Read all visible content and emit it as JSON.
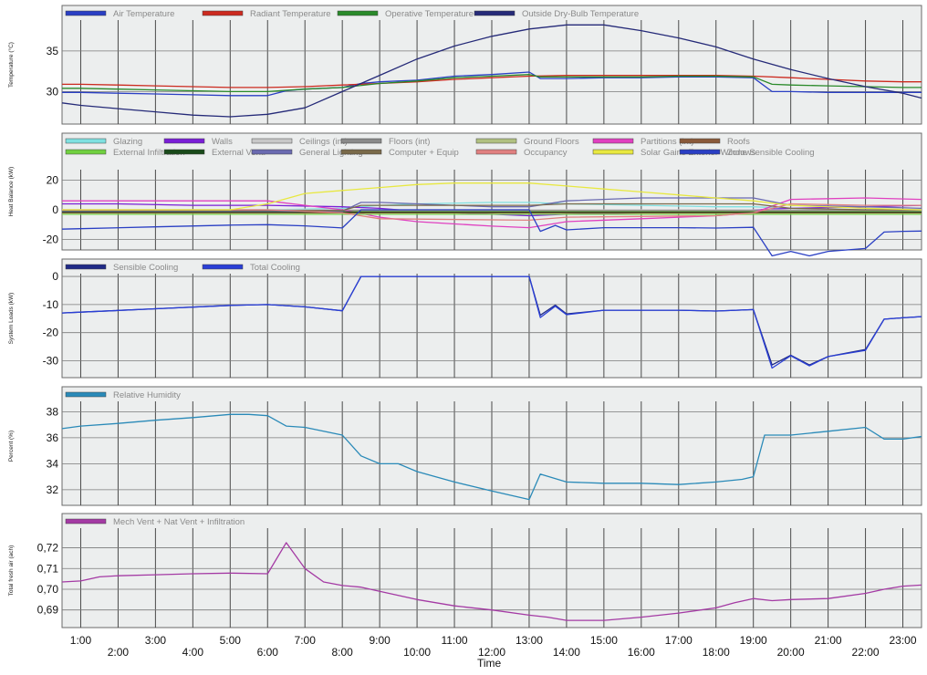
{
  "colors": {
    "panel_bg": "#eceeee",
    "grid": "#4a4a4a",
    "tick_text": "#111111",
    "legend_text": "#8a8a8a"
  },
  "x_axis": {
    "title": "Time",
    "range": [
      0.5,
      23.5
    ],
    "major_ticks": [
      1,
      2,
      3,
      4,
      5,
      6,
      7,
      8,
      9,
      10,
      11,
      12,
      13,
      14,
      15,
      16,
      17,
      18,
      19,
      20,
      21,
      22,
      23
    ],
    "labels_upper": [
      {
        "x": 1,
        "label": "1:00"
      },
      {
        "x": 3,
        "label": "3:00"
      },
      {
        "x": 5,
        "label": "5:00"
      },
      {
        "x": 7,
        "label": "7:00"
      },
      {
        "x": 9,
        "label": "9:00"
      },
      {
        "x": 11,
        "label": "11:00"
      },
      {
        "x": 13,
        "label": "13:00"
      },
      {
        "x": 15,
        "label": "15:00"
      },
      {
        "x": 17,
        "label": "17:00"
      },
      {
        "x": 19,
        "label": "19:00"
      },
      {
        "x": 21,
        "label": "21:00"
      },
      {
        "x": 23,
        "label": "23:00"
      }
    ],
    "labels_lower": [
      {
        "x": 2,
        "label": "2:00"
      },
      {
        "x": 4,
        "label": "4:00"
      },
      {
        "x": 6,
        "label": "6:00"
      },
      {
        "x": 8,
        "label": "8:00"
      },
      {
        "x": 10,
        "label": "10:00"
      },
      {
        "x": 12,
        "label": "12:00"
      },
      {
        "x": 14,
        "label": "14:00"
      },
      {
        "x": 16,
        "label": "16:00"
      },
      {
        "x": 18,
        "label": "18:00"
      },
      {
        "x": 20,
        "label": "20:00"
      },
      {
        "x": 22,
        "label": "22:00"
      }
    ]
  },
  "chart_data": [
    {
      "type": "line",
      "ylabel": "Temperature (°C)",
      "ylim": [
        26,
        38.8
      ],
      "yticks": [
        30,
        35
      ],
      "legend": "top",
      "series": [
        {
          "name": "Air Temperature",
          "color": "#2a3fc4",
          "x": [
            0.5,
            1,
            2,
            3,
            4,
            5,
            6,
            6.5,
            7,
            8,
            8.5,
            9,
            10,
            11,
            12,
            13,
            13.3,
            14,
            15,
            16,
            17,
            18,
            19,
            19.5,
            20,
            21,
            22,
            23,
            23.5
          ],
          "values": [
            29.9,
            29.9,
            29.8,
            29.7,
            29.6,
            29.5,
            29.5,
            30.1,
            30.3,
            30.5,
            31.0,
            31.2,
            31.4,
            31.9,
            32.1,
            32.4,
            31.6,
            31.6,
            31.7,
            31.7,
            31.8,
            31.8,
            31.7,
            30.0,
            30.0,
            29.9,
            29.9,
            29.9,
            29.9
          ]
        },
        {
          "name": "Radiant Temperature",
          "color": "#cc2a1f",
          "x": [
            0.5,
            1,
            2,
            3,
            4,
            5,
            6,
            7,
            8,
            9,
            10,
            11,
            12,
            13,
            14,
            15,
            16,
            17,
            18,
            19,
            20,
            21,
            22,
            23,
            23.5
          ],
          "values": [
            30.9,
            30.9,
            30.8,
            30.7,
            30.6,
            30.5,
            30.5,
            30.6,
            30.8,
            31.0,
            31.2,
            31.5,
            31.7,
            31.9,
            32.0,
            32.0,
            32.0,
            32.0,
            32.0,
            31.9,
            31.7,
            31.5,
            31.3,
            31.2,
            31.2
          ]
        },
        {
          "name": "Operative Temperature",
          "color": "#2a8a2a",
          "x": [
            0.5,
            1,
            2,
            3,
            4,
            5,
            6,
            7,
            8,
            9,
            10,
            11,
            12,
            13,
            13.3,
            14,
            15,
            16,
            17,
            18,
            19,
            19.5,
            20,
            21,
            22,
            23,
            23.5
          ],
          "values": [
            30.4,
            30.4,
            30.3,
            30.2,
            30.1,
            30.0,
            30.0,
            30.3,
            30.5,
            31.0,
            31.3,
            31.7,
            31.9,
            32.1,
            31.8,
            31.8,
            31.8,
            31.8,
            31.9,
            31.9,
            31.8,
            30.9,
            30.8,
            30.7,
            30.6,
            30.5,
            30.5
          ]
        },
        {
          "name": "Outside Dry-Bulb Temperature",
          "color": "#252a78",
          "x": [
            0.5,
            1,
            2,
            3,
            4,
            5,
            6,
            7,
            8,
            9,
            10,
            11,
            12,
            13,
            14,
            15,
            16,
            17,
            18,
            19,
            20,
            21,
            22,
            23,
            23.5
          ],
          "values": [
            28.6,
            28.3,
            27.9,
            27.5,
            27.1,
            26.9,
            27.2,
            28.0,
            30.0,
            32.0,
            34.0,
            35.6,
            36.8,
            37.7,
            38.2,
            38.2,
            37.5,
            36.6,
            35.5,
            34.0,
            32.7,
            31.6,
            30.6,
            29.8,
            29.2
          ]
        }
      ]
    },
    {
      "type": "line",
      "ylabel": "Heat Balance (kW)",
      "ylim": [
        -27,
        27
      ],
      "yticks": [
        -20,
        0,
        20
      ],
      "legend": "top",
      "series": [
        {
          "name": "Glazing",
          "color": "#7fe0e0",
          "x": [
            0.5,
            2,
            4,
            6,
            8,
            9,
            10,
            12,
            13,
            14,
            16,
            18,
            19,
            20,
            22,
            23.5
          ],
          "values": [
            0,
            0,
            0,
            0,
            1,
            3,
            4,
            5,
            5,
            4,
            3,
            2,
            2,
            1,
            0,
            0
          ]
        },
        {
          "name": "Walls",
          "color": "#7a1fd6",
          "x": [
            0.5,
            2,
            4,
            6,
            8,
            9,
            10,
            12,
            13,
            14,
            16,
            18,
            19,
            20,
            22,
            23.5
          ],
          "values": [
            4,
            4,
            3,
            3,
            2,
            1,
            -1,
            -3,
            -4,
            -3,
            -2,
            -1,
            0,
            1,
            2,
            3
          ]
        },
        {
          "name": "Ceilings (int)",
          "color": "#c8c8c8",
          "x": [
            0.5,
            4,
            8,
            12,
            16,
            20,
            23.5
          ],
          "values": [
            0,
            0,
            0,
            0,
            0,
            0,
            0
          ]
        },
        {
          "name": "Floors (int)",
          "color": "#8a8a8a",
          "x": [
            0.5,
            4,
            8,
            12,
            16,
            20,
            23.5
          ],
          "values": [
            -0.5,
            -0.5,
            -0.5,
            -0.5,
            -0.5,
            -0.5,
            -0.5
          ]
        },
        {
          "name": "Ground Floors",
          "color": "#b0c080",
          "x": [
            0.5,
            4,
            8,
            12,
            16,
            20,
            23.5
          ],
          "values": [
            -1,
            -1,
            -1,
            -1,
            -1,
            -1,
            -1
          ]
        },
        {
          "name": "Partitions (int)",
          "color": "#e040c0",
          "x": [
            0.5,
            2,
            4,
            6,
            7,
            8,
            9,
            10,
            12,
            13,
            14,
            16,
            18,
            19,
            20,
            22,
            23.5
          ],
          "values": [
            6,
            6,
            6,
            6,
            3,
            0,
            -5,
            -8,
            -11,
            -12,
            -8,
            -6,
            -4,
            -2,
            7,
            8,
            7
          ]
        },
        {
          "name": "Roofs",
          "color": "#8a5a3a",
          "x": [
            0.5,
            4,
            8,
            12,
            16,
            20,
            23.5
          ],
          "values": [
            -2,
            -2,
            -2,
            -2,
            -2,
            -2,
            -2
          ]
        },
        {
          "name": "External Infiltration",
          "color": "#70d040",
          "x": [
            0.5,
            4,
            8,
            12,
            16,
            20,
            23.5
          ],
          "values": [
            -3,
            -3,
            -3,
            -3,
            -3,
            -3,
            -3
          ]
        },
        {
          "name": "External Vent.",
          "color": "#1a4a1a",
          "x": [
            0.5,
            4,
            8,
            12,
            16,
            20,
            23.5
          ],
          "values": [
            -1.5,
            -1.5,
            -1.5,
            -1.5,
            -1.5,
            -1.5,
            -1.5
          ]
        },
        {
          "name": "General Lighting",
          "color": "#6a6ab0",
          "x": [
            0.5,
            6,
            8,
            8.5,
            9,
            12,
            13,
            14,
            16,
            18,
            19,
            20,
            22,
            23.5
          ],
          "values": [
            -1,
            -1,
            -1,
            5,
            5,
            2,
            2,
            6,
            8,
            8,
            8,
            3,
            2,
            1
          ]
        },
        {
          "name": "Computer + Equip",
          "color": "#7a6a4a",
          "x": [
            0.5,
            6,
            8,
            8.5,
            13,
            14,
            16,
            18,
            19,
            20,
            22,
            23.5
          ],
          "values": [
            -0.5,
            -0.5,
            -0.5,
            3,
            3,
            4,
            4,
            4,
            4,
            1,
            0,
            0
          ]
        },
        {
          "name": "Occupancy",
          "color": "#e08080",
          "x": [
            0.5,
            6,
            8,
            9,
            13,
            14,
            18,
            19,
            20,
            22,
            23.5
          ],
          "values": [
            0,
            0,
            -2,
            -6,
            -7,
            -5,
            -4,
            -2,
            4,
            3,
            3
          ]
        },
        {
          "name": "Solar Gains Exterior Windows",
          "color": "#e8e840",
          "x": [
            0.5,
            5,
            6,
            7,
            8,
            9,
            10,
            11,
            12,
            13,
            14,
            15,
            16,
            17,
            18,
            19,
            20,
            22,
            23.5
          ],
          "values": [
            0,
            0,
            4,
            11,
            13,
            15,
            17,
            18,
            18,
            18,
            16,
            14,
            12,
            10,
            8,
            6,
            3,
            1,
            0
          ]
        },
        {
          "name": "Zone Sensible Cooling",
          "color": "#2a3fc4",
          "x": [
            0.5,
            1,
            3,
            5,
            6,
            7,
            8,
            8.5,
            13,
            13.3,
            13.7,
            14,
            15,
            16,
            17,
            18,
            19,
            19.5,
            20,
            20.5,
            21,
            22,
            22.5,
            23,
            23.5
          ],
          "values": [
            -13,
            -12.7,
            -11.5,
            -10.3,
            -10,
            -10.8,
            -12.2,
            0,
            0,
            -14.5,
            -10.5,
            -13.5,
            -12,
            -12,
            -12,
            -12.3,
            -11.8,
            -31,
            -28,
            -31,
            -28,
            -26,
            -15,
            -14.5,
            -14.3
          ]
        }
      ]
    },
    {
      "type": "line",
      "ylabel": "System Loads (kW)",
      "ylim": [
        -36,
        1
      ],
      "yticks": [
        -30,
        -20,
        -10,
        0
      ],
      "legend": "top",
      "series": [
        {
          "name": "Sensible Cooling",
          "color": "#1f2a86",
          "x": [
            0.5,
            1,
            3,
            5,
            6,
            7,
            8,
            8.5,
            13,
            13.3,
            13.7,
            14,
            15,
            16,
            17,
            18,
            19,
            19.5,
            20,
            20.5,
            21,
            22,
            22.5,
            23,
            23.5
          ],
          "values": [
            -13,
            -12.7,
            -11.5,
            -10.3,
            -10,
            -10.8,
            -12.2,
            0,
            0,
            -13.8,
            -10.2,
            -13.3,
            -12,
            -12,
            -12,
            -12.3,
            -11.8,
            -31.5,
            -28,
            -31.5,
            -28.5,
            -26,
            -15.2,
            -14.7,
            -14.3
          ]
        },
        {
          "name": "Total Cooling",
          "color": "#2a3fd6",
          "x": [
            0.5,
            1,
            3,
            5,
            6,
            7,
            8,
            8.5,
            13,
            13.3,
            13.7,
            14,
            15,
            16,
            17,
            18,
            19,
            19.5,
            20,
            20.5,
            21,
            22,
            22.5,
            23,
            23.5
          ],
          "values": [
            -13,
            -12.7,
            -11.5,
            -10.3,
            -10,
            -10.8,
            -12.2,
            0,
            0,
            -14.6,
            -10.6,
            -13.6,
            -12,
            -12,
            -12,
            -12.3,
            -11.8,
            -32.6,
            -28.2,
            -31.8,
            -28.5,
            -26.3,
            -15.2,
            -14.7,
            -14.3
          ]
        }
      ]
    },
    {
      "type": "line",
      "ylabel": "Percent (%)",
      "ylim": [
        30.8,
        38.8
      ],
      "yticks": [
        32,
        34,
        36,
        38
      ],
      "legend": "top",
      "series": [
        {
          "name": "Relative Humidity",
          "color": "#2a8ab8",
          "x": [
            0.5,
            1,
            2,
            3,
            4,
            5,
            5.5,
            6,
            6.5,
            7,
            8,
            8.5,
            9,
            9.5,
            10,
            11,
            12,
            13,
            13.3,
            14,
            15,
            16,
            17,
            18,
            18.7,
            19,
            19.3,
            20,
            21,
            22,
            22.5,
            23,
            23.5
          ],
          "values": [
            36.7,
            36.9,
            37.1,
            37.35,
            37.55,
            37.8,
            37.8,
            37.7,
            36.9,
            36.8,
            36.2,
            34.6,
            34.0,
            34.0,
            33.4,
            32.6,
            31.9,
            31.25,
            33.2,
            32.6,
            32.5,
            32.5,
            32.4,
            32.6,
            32.8,
            33.0,
            36.2,
            36.2,
            36.5,
            36.8,
            35.9,
            35.9,
            36.1
          ]
        }
      ]
    },
    {
      "type": "line",
      "ylabel": "Total fresh air (ach)",
      "ylim": [
        0.6815,
        0.7295
      ],
      "yticks": [
        0.69,
        0.7,
        0.71,
        0.72
      ],
      "ytick_labels": [
        "0,69",
        "0,70",
        "0,71",
        "0,72"
      ],
      "legend": "top",
      "series": [
        {
          "name": "Mech Vent + Nat Vent + Infiltration",
          "color": "#a43aa4",
          "x": [
            0.5,
            1,
            1.5,
            2,
            3,
            4,
            5,
            6,
            6.5,
            7,
            7.5,
            8,
            8.5,
            9,
            9.5,
            10,
            11,
            12,
            13,
            13.5,
            14,
            15,
            16,
            17,
            18,
            18.5,
            19,
            19.5,
            20,
            21,
            22,
            22.5,
            23,
            23.5
          ],
          "values": [
            0.7035,
            0.704,
            0.706,
            0.7065,
            0.707,
            0.7075,
            0.7078,
            0.7075,
            0.7225,
            0.71,
            0.7035,
            0.7018,
            0.701,
            0.699,
            0.697,
            0.695,
            0.692,
            0.69,
            0.6875,
            0.6865,
            0.685,
            0.685,
            0.6865,
            0.6885,
            0.691,
            0.6935,
            0.6955,
            0.6945,
            0.695,
            0.6955,
            0.698,
            0.7,
            0.7015,
            0.702
          ]
        }
      ]
    }
  ]
}
